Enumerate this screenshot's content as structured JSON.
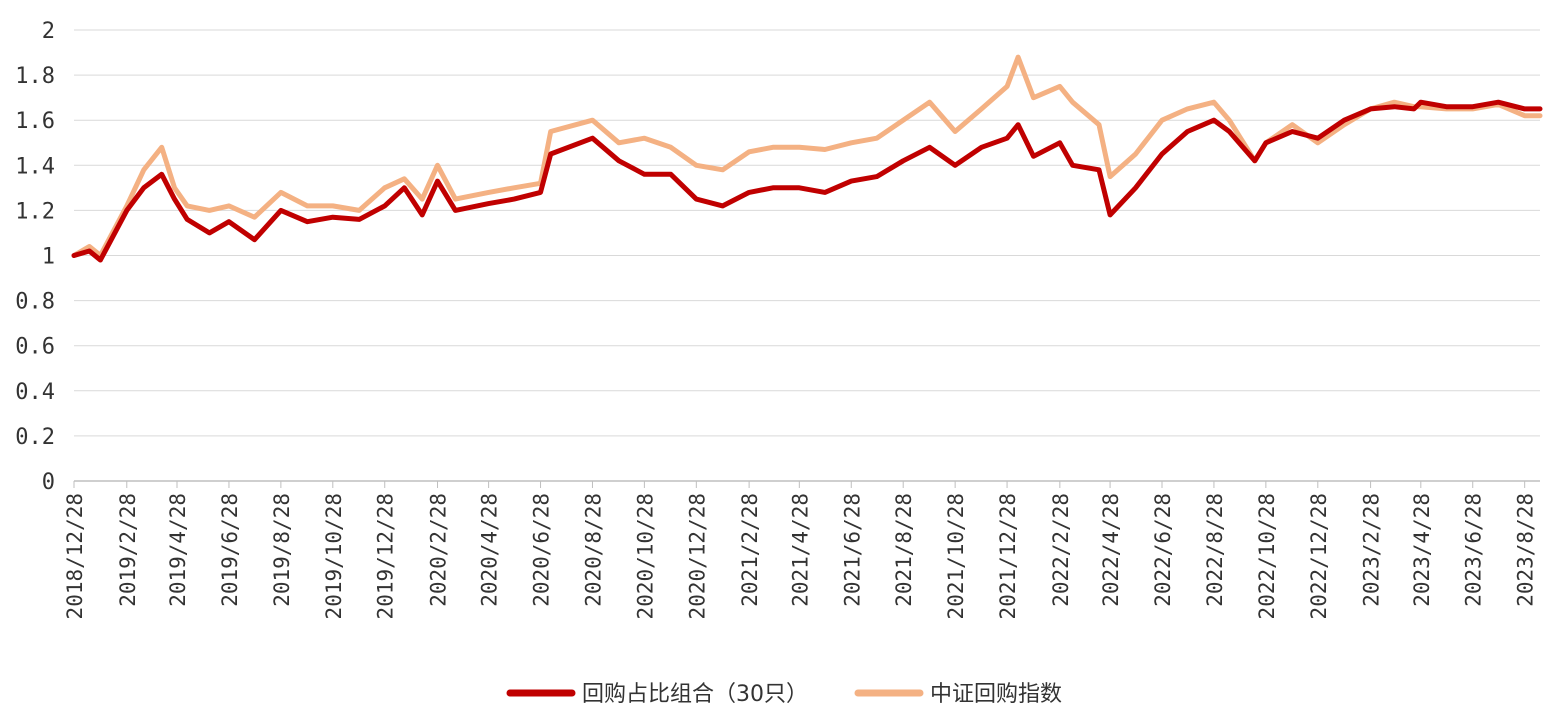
{
  "chart_data": {
    "type": "line",
    "title": "",
    "xlabel": "",
    "ylabel": "",
    "ylim": [
      0,
      2
    ],
    "y_ticks": [
      "0",
      "0.2",
      "0.4",
      "0.6",
      "0.8",
      "1",
      "1.2",
      "1.4",
      "1.6",
      "1.8",
      "2"
    ],
    "x_ticks": [
      "2018/12/28",
      "2019/2/28",
      "2019/4/28",
      "2019/6/28",
      "2019/8/28",
      "2019/10/28",
      "2019/12/28",
      "2020/2/28",
      "2020/4/28",
      "2020/6/28",
      "2020/8/28",
      "2020/10/28",
      "2020/12/28",
      "2021/2/28",
      "2021/4/28",
      "2021/6/28",
      "2021/8/28",
      "2021/10/28",
      "2021/12/28",
      "2022/2/28",
      "2022/4/28",
      "2022/6/28",
      "2022/8/28",
      "2022/10/28",
      "2022/12/28",
      "2023/2/28",
      "2023/4/28",
      "2023/6/28",
      "2023/8/28"
    ],
    "grid": true,
    "legend_position": "bottom",
    "series": [
      {
        "name": "回购占比组合（30只）",
        "color": "#C00000",
        "x": [
          "2018/12/28",
          "2019/1/15",
          "2019/1/28",
          "2019/2/28",
          "2019/3/20",
          "2019/4/10",
          "2019/4/25",
          "2019/5/10",
          "2019/6/5",
          "2019/6/28",
          "2019/7/28",
          "2019/8/28",
          "2019/9/28",
          "2019/10/28",
          "2019/11/28",
          "2019/12/28",
          "2020/1/20",
          "2020/2/10",
          "2020/2/28",
          "2020/3/20",
          "2020/4/28",
          "2020/5/28",
          "2020/6/28",
          "2020/7/10",
          "2020/8/28",
          "2020/9/28",
          "2020/10/28",
          "2020/11/28",
          "2020/12/28",
          "2021/1/28",
          "2021/2/28",
          "2021/3/28",
          "2021/4/28",
          "2021/5/28",
          "2021/6/28",
          "2021/7/28",
          "2021/8/28",
          "2021/9/28",
          "2021/10/28",
          "2021/11/28",
          "2021/12/28",
          "2022/1/10",
          "2022/1/28",
          "2022/2/28",
          "2022/3/15",
          "2022/4/15",
          "2022/4/28",
          "2022/5/28",
          "2022/6/28",
          "2022/7/28",
          "2022/8/28",
          "2022/9/15",
          "2022/10/15",
          "2022/10/28",
          "2022/11/28",
          "2022/12/28",
          "2023/1/28",
          "2023/2/28",
          "2023/3/28",
          "2023/4/20",
          "2023/4/28",
          "2023/5/28",
          "2023/6/28",
          "2023/7/28",
          "2023/8/28",
          "2023/9/15"
        ],
        "values": [
          1.0,
          1.02,
          0.98,
          1.2,
          1.3,
          1.36,
          1.25,
          1.16,
          1.1,
          1.15,
          1.07,
          1.2,
          1.15,
          1.17,
          1.16,
          1.22,
          1.3,
          1.18,
          1.33,
          1.2,
          1.23,
          1.25,
          1.28,
          1.45,
          1.52,
          1.42,
          1.36,
          1.36,
          1.25,
          1.22,
          1.28,
          1.3,
          1.3,
          1.28,
          1.33,
          1.35,
          1.42,
          1.48,
          1.4,
          1.48,
          1.52,
          1.58,
          1.44,
          1.5,
          1.4,
          1.38,
          1.18,
          1.3,
          1.45,
          1.55,
          1.6,
          1.55,
          1.42,
          1.5,
          1.55,
          1.52,
          1.6,
          1.65,
          1.66,
          1.65,
          1.68,
          1.66,
          1.66,
          1.68,
          1.65,
          1.65
        ]
      },
      {
        "name": "中证回购指数",
        "color": "#F4B183",
        "x": [
          "2018/12/28",
          "2019/1/15",
          "2019/1/28",
          "2019/2/28",
          "2019/3/20",
          "2019/4/10",
          "2019/4/25",
          "2019/5/10",
          "2019/6/5",
          "2019/6/28",
          "2019/7/28",
          "2019/8/28",
          "2019/9/28",
          "2019/10/28",
          "2019/11/28",
          "2019/12/28",
          "2020/1/20",
          "2020/2/10",
          "2020/2/28",
          "2020/3/20",
          "2020/4/28",
          "2020/5/28",
          "2020/6/28",
          "2020/7/10",
          "2020/8/28",
          "2020/9/28",
          "2020/10/28",
          "2020/11/28",
          "2020/12/28",
          "2021/1/28",
          "2021/2/28",
          "2021/3/28",
          "2021/4/28",
          "2021/5/28",
          "2021/6/28",
          "2021/7/28",
          "2021/8/28",
          "2021/9/28",
          "2021/10/28",
          "2021/11/28",
          "2021/12/28",
          "2022/1/10",
          "2022/1/28",
          "2022/2/28",
          "2022/3/15",
          "2022/4/15",
          "2022/4/28",
          "2022/5/28",
          "2022/6/28",
          "2022/7/28",
          "2022/8/28",
          "2022/9/15",
          "2022/10/15",
          "2022/10/28",
          "2022/11/28",
          "2022/12/28",
          "2023/1/28",
          "2023/2/28",
          "2023/3/28",
          "2023/4/20",
          "2023/4/28",
          "2023/5/28",
          "2023/6/28",
          "2023/7/28",
          "2023/8/28",
          "2023/9/15"
        ],
        "values": [
          1.0,
          1.04,
          1.0,
          1.22,
          1.38,
          1.48,
          1.3,
          1.22,
          1.2,
          1.22,
          1.17,
          1.28,
          1.22,
          1.22,
          1.2,
          1.3,
          1.34,
          1.25,
          1.4,
          1.25,
          1.28,
          1.3,
          1.32,
          1.55,
          1.6,
          1.5,
          1.52,
          1.48,
          1.4,
          1.38,
          1.46,
          1.48,
          1.48,
          1.47,
          1.5,
          1.52,
          1.6,
          1.68,
          1.55,
          1.65,
          1.75,
          1.88,
          1.7,
          1.75,
          1.68,
          1.58,
          1.35,
          1.45,
          1.6,
          1.65,
          1.68,
          1.6,
          1.42,
          1.5,
          1.58,
          1.5,
          1.58,
          1.65,
          1.68,
          1.66,
          1.66,
          1.65,
          1.65,
          1.67,
          1.62,
          1.62
        ]
      }
    ]
  }
}
